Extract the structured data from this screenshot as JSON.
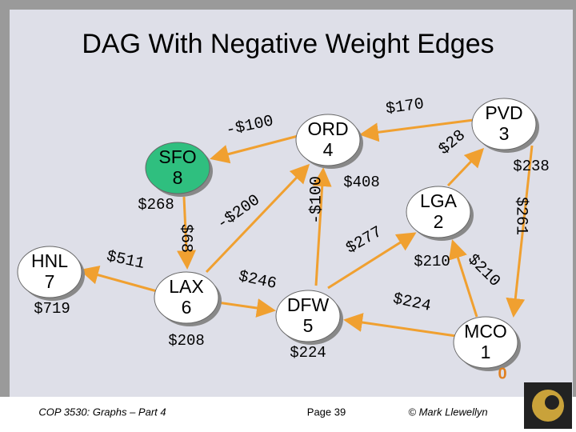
{
  "title": "DAG With Negative Weight Edges",
  "nodes": [
    {
      "name": "SFO",
      "number": "8",
      "distance": "$268"
    },
    {
      "name": "ORD",
      "number": "4",
      "distance": "$408"
    },
    {
      "name": "PVD",
      "number": "3",
      "distance": "$238"
    },
    {
      "name": "LGA",
      "number": "2",
      "distance": "$210"
    },
    {
      "name": "HNL",
      "number": "7",
      "distance": "$719"
    },
    {
      "name": "LAX",
      "number": "6",
      "distance": "$208"
    },
    {
      "name": "DFW",
      "number": "5",
      "distance": "$224"
    },
    {
      "name": "MCO",
      "number": "1",
      "distance": "0"
    }
  ],
  "edges": [
    {
      "weight": "-$100"
    },
    {
      "weight": "$170"
    },
    {
      "weight": "$28"
    },
    {
      "weight": "$261"
    },
    {
      "weight": "-$100"
    },
    {
      "weight": "-$200"
    },
    {
      "weight": "$68"
    },
    {
      "weight": "$511"
    },
    {
      "weight": "$246"
    },
    {
      "weight": "$277"
    },
    {
      "weight": "$210"
    },
    {
      "weight": "$224"
    }
  ],
  "footer": {
    "course": "COP 3530: Graphs – Part 4",
    "page": "Page 39",
    "author": "© Mark Llewellyn"
  }
}
